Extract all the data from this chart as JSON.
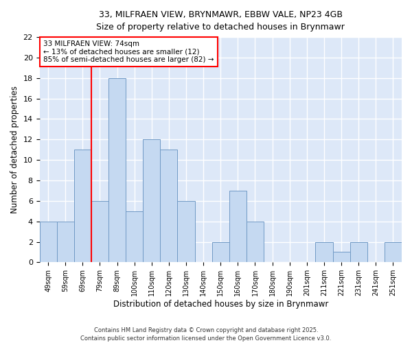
{
  "title_line1": "33, MILFRAEN VIEW, BRYNMAWR, EBBW VALE, NP23 4GB",
  "title_line2": "Size of property relative to detached houses in Brynmawr",
  "xlabel": "Distribution of detached houses by size in Brynmawr",
  "ylabel": "Number of detached properties",
  "categories": [
    "49sqm",
    "59sqm",
    "69sqm",
    "79sqm",
    "89sqm",
    "100sqm",
    "110sqm",
    "120sqm",
    "130sqm",
    "140sqm",
    "150sqm",
    "160sqm",
    "170sqm",
    "180sqm",
    "190sqm",
    "201sqm",
    "211sqm",
    "221sqm",
    "231sqm",
    "241sqm",
    "251sqm"
  ],
  "values": [
    4,
    4,
    11,
    6,
    18,
    5,
    12,
    11,
    6,
    0,
    2,
    7,
    4,
    0,
    0,
    0,
    2,
    1,
    2,
    0,
    2
  ],
  "bar_color": "#c5d9f1",
  "bar_edge_color": "#7099c5",
  "vline_index": 2,
  "vline_color": "red",
  "annotation_text": "33 MILFRAEN VIEW: 74sqm\n← 13% of detached houses are smaller (12)\n85% of semi-detached houses are larger (82) →",
  "annotation_box_color": "white",
  "annotation_box_edge_color": "red",
  "ylim": [
    0,
    22
  ],
  "yticks": [
    0,
    2,
    4,
    6,
    8,
    10,
    12,
    14,
    16,
    18,
    20,
    22
  ],
  "footer": "Contains HM Land Registry data © Crown copyright and database right 2025.\nContains public sector information licensed under the Open Government Licence v3.0.",
  "fig_bg_color": "#ffffff",
  "plot_bg_color": "#dde8f8",
  "grid_color": "#ffffff"
}
